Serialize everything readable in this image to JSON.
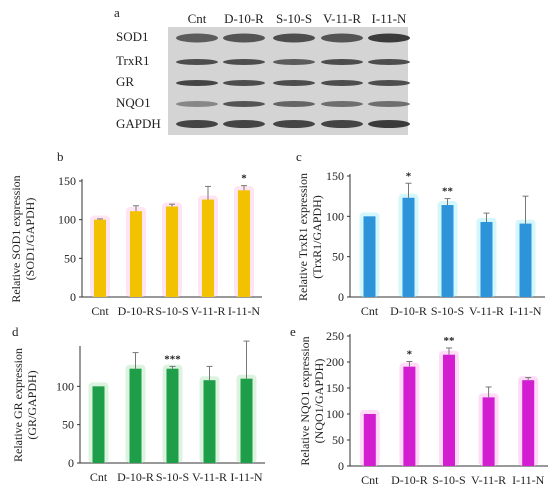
{
  "figure": {
    "blot": {
      "panel_letter": "a",
      "lanes": [
        "Cnt",
        "D-10-R",
        "S-10-S",
        "V-11-R",
        "I-11-N"
      ],
      "rows": [
        "SOD1",
        "TrxR1",
        "GR",
        "NQO1",
        "GAPDH"
      ]
    }
  },
  "colors": {
    "b": "#f2c200",
    "c": "#2e94d9",
    "d": "#1e9e48",
    "e": "#d21dd0",
    "axis": "#333333",
    "blot_bg": "#d4d4d4",
    "band": "#2a2a2a"
  },
  "chart_data": [
    {
      "panel": "b",
      "type": "bar",
      "categories": [
        "Cnt",
        "D-10-R",
        "S-10-S",
        "V-11-R",
        "I-11-N"
      ],
      "values": [
        100,
        111,
        117,
        126,
        138
      ],
      "errors": [
        1,
        7,
        3,
        17,
        6
      ],
      "annotations": [
        "",
        "",
        "",
        "",
        "*"
      ],
      "ylabel": "Relative SOD1 expression (SOD1/GAPDH)",
      "ylim": [
        0,
        150
      ],
      "yticks": [
        0,
        50,
        100,
        150
      ],
      "color": "#f2c200",
      "glow": "#ffd6ee"
    },
    {
      "panel": "c",
      "type": "bar",
      "categories": [
        "Cnt",
        "D-10-R",
        "S-10-S",
        "V-11-R",
        "I-11-N"
      ],
      "values": [
        100,
        123,
        114,
        93,
        91
      ],
      "errors": [
        0,
        18,
        8,
        11,
        34
      ],
      "annotations": [
        "",
        "*",
        "**",
        "",
        ""
      ],
      "ylabel": "Relative TrxR1 expression (TrxR1/GAPDH)",
      "ylim": [
        0,
        150
      ],
      "yticks": [
        0,
        50,
        100,
        150
      ],
      "color": "#2e94d9",
      "glow": "#bdf3fb"
    },
    {
      "panel": "d",
      "type": "bar",
      "categories": [
        "Cnt",
        "D-10-R",
        "S-10-S",
        "V-11-R",
        "I-11-N"
      ],
      "values": [
        100,
        123,
        123,
        108,
        110
      ],
      "errors": [
        0,
        21,
        3,
        18,
        49
      ],
      "annotations": [
        "",
        "",
        "***",
        "",
        ""
      ],
      "ylabel": "Relative GR expression (GR/GAPDH)",
      "ylim": [
        0,
        150
      ],
      "yticks": [
        0,
        50,
        100
      ],
      "color": "#1e9e48",
      "glow": "#c9ecd0"
    },
    {
      "panel": "e",
      "type": "bar",
      "categories": [
        "Cnt",
        "D-10-R",
        "S-10-S",
        "V-11-R",
        "I-11-N"
      ],
      "values": [
        100,
        191,
        214,
        132,
        165
      ],
      "errors": [
        0,
        10,
        13,
        20,
        5
      ],
      "annotations": [
        "",
        "*",
        "**",
        "",
        ""
      ],
      "ylabel": "Relative NQO1 expression (NQO1/GAPDH)",
      "ylim": [
        0,
        250
      ],
      "yticks": [
        0,
        50,
        100,
        150,
        200,
        250
      ],
      "color": "#d21dd0",
      "glow": "#ffc8f2"
    }
  ]
}
